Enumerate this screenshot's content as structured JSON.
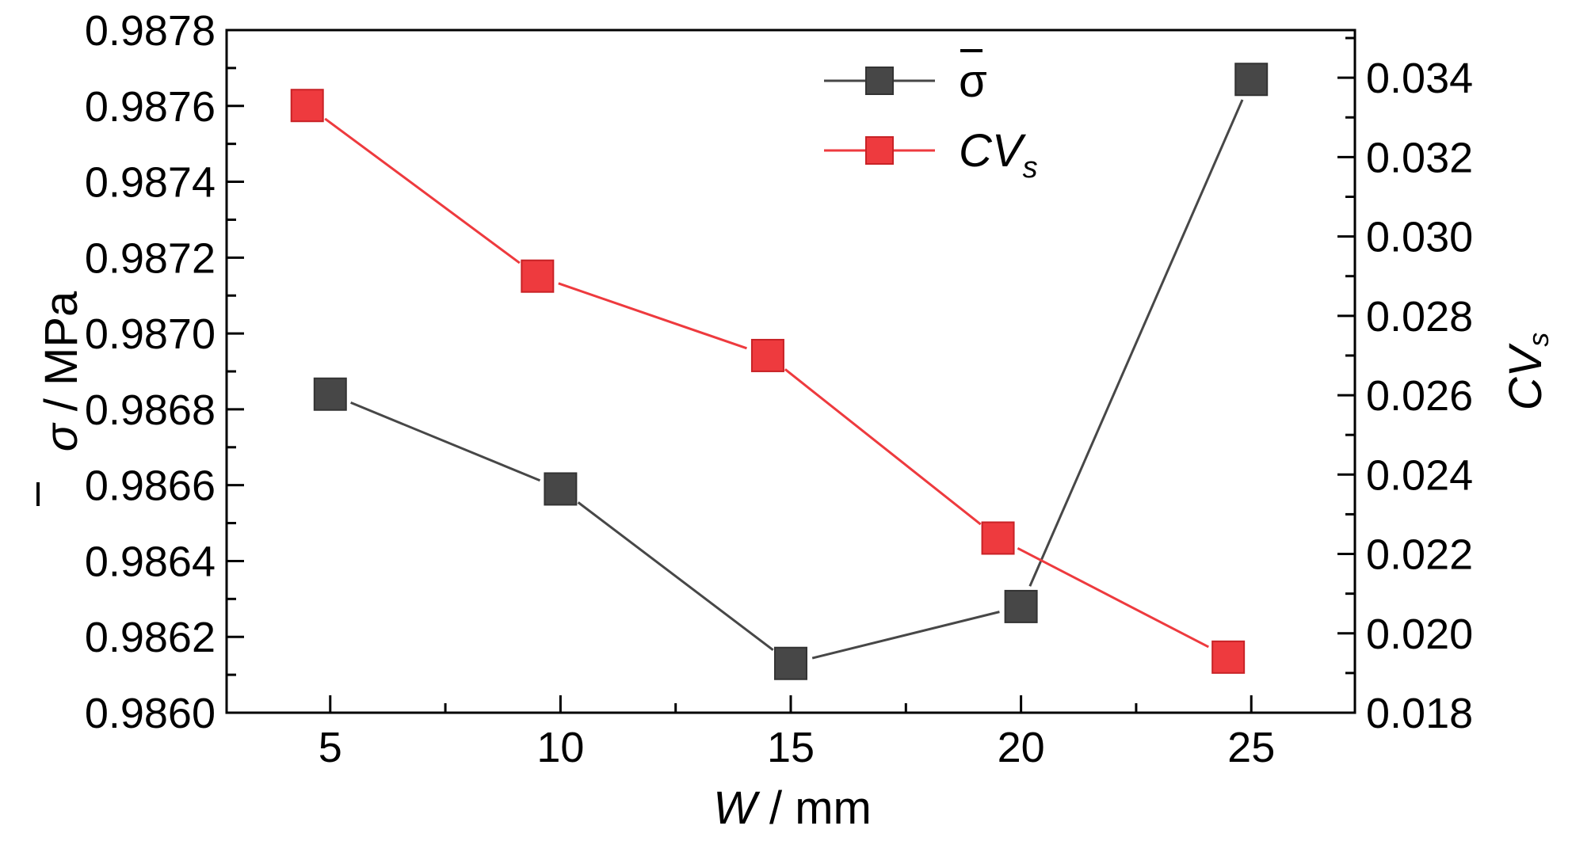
{
  "chart_data": {
    "type": "line",
    "x_axis": {
      "label_italic": "W",
      "label_rest": " / mm",
      "lim": [
        2.75,
        27.25
      ],
      "ticks": [
        5,
        10,
        15,
        20,
        25
      ],
      "tick_labels": [
        "5",
        "10",
        "15",
        "20",
        "25"
      ]
    },
    "y_left": {
      "label_symbol": "σ",
      "label_rest": " / MPa",
      "lim": [
        0.986,
        0.9878
      ],
      "ticks": [
        0.986,
        0.9862,
        0.9864,
        0.9866,
        0.9868,
        0.987,
        0.9872,
        0.9874,
        0.9876,
        0.9878
      ],
      "tick_labels": [
        "0.9860",
        "0.9862",
        "0.9864",
        "0.9866",
        "0.9868",
        "0.9870",
        "0.9872",
        "0.9874",
        "0.9876",
        "0.9878"
      ]
    },
    "y_right": {
      "label_main": "CV",
      "label_sub": "s",
      "lim": [
        0.018,
        0.0352
      ],
      "ticks": [
        0.018,
        0.02,
        0.022,
        0.024,
        0.026,
        0.028,
        0.03,
        0.032,
        0.034
      ],
      "tick_labels": [
        "0.018",
        "0.020",
        "0.022",
        "0.024",
        "0.026",
        "0.028",
        "0.030",
        "0.032",
        "0.034"
      ]
    },
    "series": [
      {
        "name": "σ",
        "axis": "left",
        "color": "#474747",
        "marker": "square",
        "x": [
          5,
          10,
          15,
          20,
          25
        ],
        "y": [
          0.98684,
          0.98659,
          0.98613,
          0.98628,
          0.98767
        ]
      },
      {
        "name_main": "CV",
        "name_sub": "s",
        "axis": "right",
        "color": "#ee3a3e",
        "marker": "square",
        "x": [
          4.5,
          9.5,
          14.5,
          19.5,
          24.5
        ],
        "y": [
          0.0333,
          0.029,
          0.027,
          0.0224,
          0.0194
        ]
      }
    ],
    "legend_position": "top-center",
    "grid": false
  }
}
